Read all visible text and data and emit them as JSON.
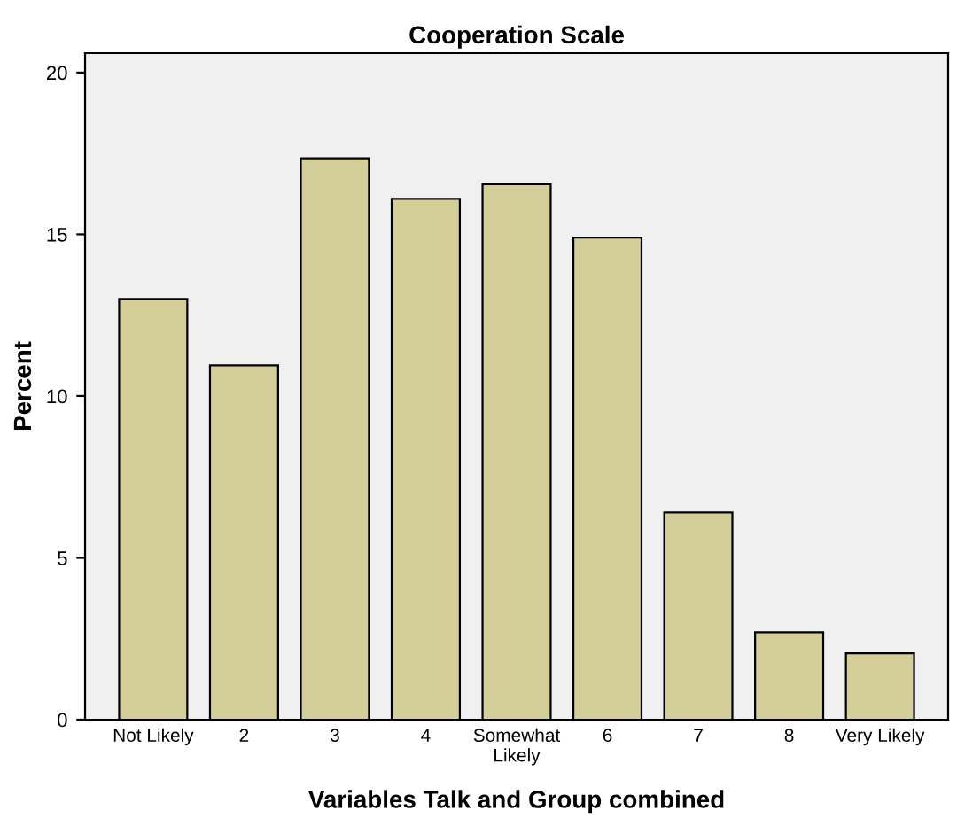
{
  "chart_data": {
    "type": "bar",
    "title": "Cooperation Scale",
    "xlabel": "Variables Talk and Group combined",
    "ylabel": "Percent",
    "categories": [
      "Not Likely",
      "2",
      "3",
      "4",
      "Somewhat\nLikely",
      "6",
      "7",
      "8",
      "Very Likely"
    ],
    "values": [
      13.0,
      10.95,
      17.35,
      16.1,
      16.55,
      14.9,
      6.4,
      2.7,
      2.05
    ],
    "color": "#d4cf98",
    "ylim": [
      0,
      20.6
    ],
    "yticks": [
      0,
      5,
      10,
      15,
      20
    ],
    "grid": false
  }
}
